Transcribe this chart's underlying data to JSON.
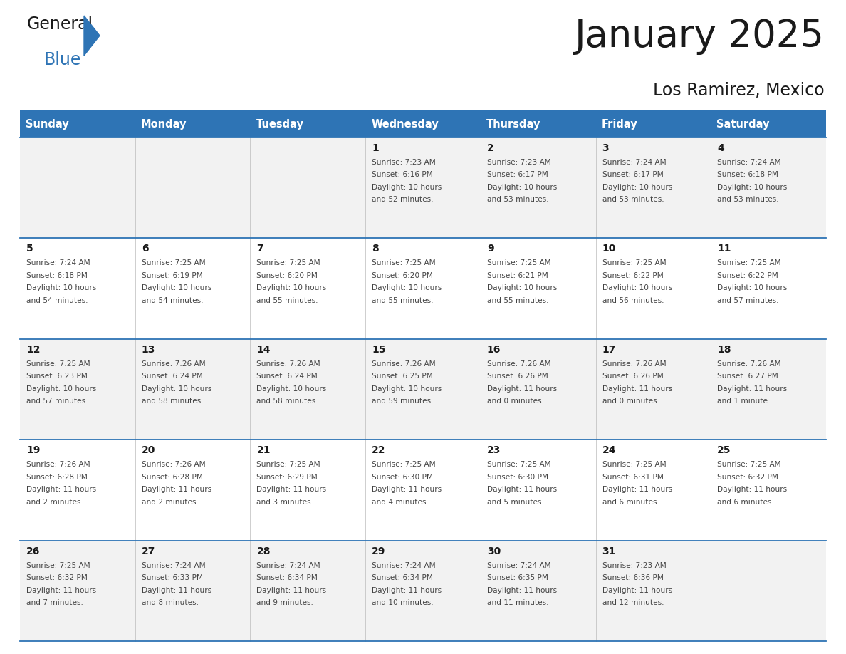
{
  "title": "January 2025",
  "subtitle": "Los Ramirez, Mexico",
  "days_of_week": [
    "Sunday",
    "Monday",
    "Tuesday",
    "Wednesday",
    "Thursday",
    "Friday",
    "Saturday"
  ],
  "header_bg": "#2E74B5",
  "header_text_color": "#FFFFFF",
  "row_bg_odd": "#F2F2F2",
  "row_bg_even": "#FFFFFF",
  "cell_border_color": "#2E74B5",
  "text_color": "#444444",
  "calendar_data": [
    [
      null,
      null,
      null,
      {
        "day": 1,
        "sunrise": "7:23 AM",
        "sunset": "6:16 PM",
        "daylight": "10 hours\nand 52 minutes."
      },
      {
        "day": 2,
        "sunrise": "7:23 AM",
        "sunset": "6:17 PM",
        "daylight": "10 hours\nand 53 minutes."
      },
      {
        "day": 3,
        "sunrise": "7:24 AM",
        "sunset": "6:17 PM",
        "daylight": "10 hours\nand 53 minutes."
      },
      {
        "day": 4,
        "sunrise": "7:24 AM",
        "sunset": "6:18 PM",
        "daylight": "10 hours\nand 53 minutes."
      }
    ],
    [
      {
        "day": 5,
        "sunrise": "7:24 AM",
        "sunset": "6:18 PM",
        "daylight": "10 hours\nand 54 minutes."
      },
      {
        "day": 6,
        "sunrise": "7:25 AM",
        "sunset": "6:19 PM",
        "daylight": "10 hours\nand 54 minutes."
      },
      {
        "day": 7,
        "sunrise": "7:25 AM",
        "sunset": "6:20 PM",
        "daylight": "10 hours\nand 55 minutes."
      },
      {
        "day": 8,
        "sunrise": "7:25 AM",
        "sunset": "6:20 PM",
        "daylight": "10 hours\nand 55 minutes."
      },
      {
        "day": 9,
        "sunrise": "7:25 AM",
        "sunset": "6:21 PM",
        "daylight": "10 hours\nand 55 minutes."
      },
      {
        "day": 10,
        "sunrise": "7:25 AM",
        "sunset": "6:22 PM",
        "daylight": "10 hours\nand 56 minutes."
      },
      {
        "day": 11,
        "sunrise": "7:25 AM",
        "sunset": "6:22 PM",
        "daylight": "10 hours\nand 57 minutes."
      }
    ],
    [
      {
        "day": 12,
        "sunrise": "7:25 AM",
        "sunset": "6:23 PM",
        "daylight": "10 hours\nand 57 minutes."
      },
      {
        "day": 13,
        "sunrise": "7:26 AM",
        "sunset": "6:24 PM",
        "daylight": "10 hours\nand 58 minutes."
      },
      {
        "day": 14,
        "sunrise": "7:26 AM",
        "sunset": "6:24 PM",
        "daylight": "10 hours\nand 58 minutes."
      },
      {
        "day": 15,
        "sunrise": "7:26 AM",
        "sunset": "6:25 PM",
        "daylight": "10 hours\nand 59 minutes."
      },
      {
        "day": 16,
        "sunrise": "7:26 AM",
        "sunset": "6:26 PM",
        "daylight": "11 hours\nand 0 minutes."
      },
      {
        "day": 17,
        "sunrise": "7:26 AM",
        "sunset": "6:26 PM",
        "daylight": "11 hours\nand 0 minutes."
      },
      {
        "day": 18,
        "sunrise": "7:26 AM",
        "sunset": "6:27 PM",
        "daylight": "11 hours\nand 1 minute."
      }
    ],
    [
      {
        "day": 19,
        "sunrise": "7:26 AM",
        "sunset": "6:28 PM",
        "daylight": "11 hours\nand 2 minutes."
      },
      {
        "day": 20,
        "sunrise": "7:26 AM",
        "sunset": "6:28 PM",
        "daylight": "11 hours\nand 2 minutes."
      },
      {
        "day": 21,
        "sunrise": "7:25 AM",
        "sunset": "6:29 PM",
        "daylight": "11 hours\nand 3 minutes."
      },
      {
        "day": 22,
        "sunrise": "7:25 AM",
        "sunset": "6:30 PM",
        "daylight": "11 hours\nand 4 minutes."
      },
      {
        "day": 23,
        "sunrise": "7:25 AM",
        "sunset": "6:30 PM",
        "daylight": "11 hours\nand 5 minutes."
      },
      {
        "day": 24,
        "sunrise": "7:25 AM",
        "sunset": "6:31 PM",
        "daylight": "11 hours\nand 6 minutes."
      },
      {
        "day": 25,
        "sunrise": "7:25 AM",
        "sunset": "6:32 PM",
        "daylight": "11 hours\nand 6 minutes."
      }
    ],
    [
      {
        "day": 26,
        "sunrise": "7:25 AM",
        "sunset": "6:32 PM",
        "daylight": "11 hours\nand 7 minutes."
      },
      {
        "day": 27,
        "sunrise": "7:24 AM",
        "sunset": "6:33 PM",
        "daylight": "11 hours\nand 8 minutes."
      },
      {
        "day": 28,
        "sunrise": "7:24 AM",
        "sunset": "6:34 PM",
        "daylight": "11 hours\nand 9 minutes."
      },
      {
        "day": 29,
        "sunrise": "7:24 AM",
        "sunset": "6:34 PM",
        "daylight": "11 hours\nand 10 minutes."
      },
      {
        "day": 30,
        "sunrise": "7:24 AM",
        "sunset": "6:35 PM",
        "daylight": "11 hours\nand 11 minutes."
      },
      {
        "day": 31,
        "sunrise": "7:23 AM",
        "sunset": "6:36 PM",
        "daylight": "11 hours\nand 12 minutes."
      },
      null
    ]
  ],
  "logo_general_color": "#1a1a1a",
  "logo_blue_color": "#2E74B5",
  "logo_triangle_color": "#2E74B5"
}
